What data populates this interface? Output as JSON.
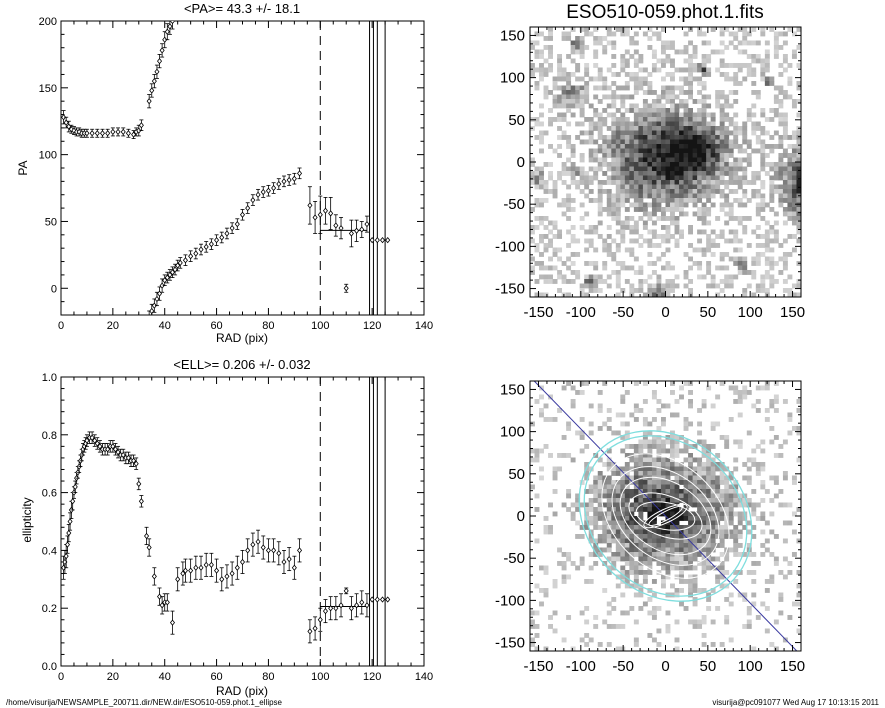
{
  "chart_data": [
    {
      "type": "scatter",
      "title": "<PA>=  43.3 +/-  18.1",
      "xlabel": "RAD (pix)",
      "ylabel": "PA",
      "xlim": [
        0,
        140
      ],
      "ylim": [
        -20,
        200
      ],
      "x_ticks": [
        "0",
        "20",
        "40",
        "60",
        "80",
        "100",
        "120",
        "140"
      ],
      "y_ticks": [
        "0",
        "50",
        "100",
        "150",
        "200"
      ],
      "dashed_x": 100,
      "solid_x": [
        119,
        120.5,
        122,
        125
      ],
      "mean_line": {
        "x": [
          100,
          118
        ],
        "y": 43.3
      },
      "points": {
        "x": [
          1,
          2,
          3,
          4,
          5,
          6,
          7,
          8,
          9,
          10,
          12,
          14,
          16,
          18,
          20,
          22,
          24,
          26,
          28,
          29,
          30,
          31,
          34,
          35,
          36,
          37,
          38,
          39,
          40,
          41,
          42,
          43,
          34,
          35,
          36,
          37,
          38,
          39,
          40,
          41,
          42,
          43,
          44,
          45,
          46,
          48,
          50,
          52,
          54,
          56,
          58,
          60,
          62,
          64,
          66,
          68,
          70,
          72,
          74,
          76,
          78,
          80,
          82,
          84,
          86,
          88,
          90,
          92,
          96,
          98,
          100,
          102,
          104,
          106,
          108,
          110,
          112,
          114,
          116,
          118,
          120,
          122,
          124,
          126
        ],
        "y": [
          128,
          124,
          121,
          119,
          118,
          117,
          117,
          116,
          116,
          116,
          116,
          116,
          116,
          116,
          117,
          117,
          117,
          116,
          115,
          117,
          118,
          122,
          140,
          148,
          155,
          162,
          170,
          178,
          186,
          192,
          196,
          200,
          -22,
          -17,
          -13,
          -8,
          -4,
          2,
          6,
          8,
          10,
          12,
          14,
          17,
          19,
          21,
          24,
          26,
          29,
          31,
          33,
          36,
          38,
          41,
          45,
          48,
          55,
          60,
          66,
          70,
          72,
          73,
          75,
          78,
          80,
          81,
          82,
          86,
          62,
          53,
          55,
          58,
          56,
          47,
          45,
          0,
          41,
          43,
          44,
          48,
          36,
          36,
          36,
          36
        ],
        "err": [
          5,
          4,
          4,
          3,
          3,
          3,
          3,
          3,
          3,
          3,
          3,
          3,
          3,
          3,
          3,
          3,
          3,
          3,
          3,
          3,
          4,
          4,
          5,
          5,
          5,
          5,
          5,
          5,
          6,
          6,
          6,
          6,
          5,
          5,
          5,
          5,
          5,
          5,
          4,
          4,
          4,
          4,
          4,
          4,
          4,
          4,
          4,
          4,
          4,
          4,
          4,
          4,
          4,
          4,
          4,
          4,
          4,
          4,
          4,
          4,
          4,
          4,
          4,
          4,
          4,
          4,
          4,
          4,
          14,
          12,
          14,
          10,
          12,
          8,
          8,
          3,
          10,
          8,
          6,
          6,
          0,
          0,
          0,
          0
        ]
      }
    },
    {
      "type": "scatter",
      "title": "<ELL>= 0.206 +/-  0.032",
      "xlabel": "RAD (pix)",
      "ylabel": "ellipticity",
      "xlim": [
        0,
        140
      ],
      "ylim": [
        0,
        1
      ],
      "x_ticks": [
        "0",
        "20",
        "40",
        "60",
        "80",
        "100",
        "120",
        "140"
      ],
      "y_ticks": [
        "0.0",
        "0.2",
        "0.4",
        "0.6",
        "0.8",
        "1.0"
      ],
      "dashed_x": 100,
      "solid_x": [
        119,
        120.5,
        122,
        125
      ],
      "mean_line": {
        "x": [
          100,
          118
        ],
        "y": 0.206
      },
      "points": {
        "x": [
          1,
          1.5,
          2,
          2.5,
          3,
          3.5,
          4,
          4.5,
          5,
          5.5,
          6,
          6.5,
          7,
          7.5,
          8,
          8.5,
          9,
          9.5,
          10,
          11,
          12,
          13,
          14,
          15,
          16,
          17,
          18,
          19,
          20,
          21,
          22,
          23,
          24,
          25,
          26,
          27,
          28,
          29,
          30,
          31,
          33,
          34,
          36,
          38,
          39,
          40,
          41,
          43,
          45,
          47,
          48,
          50,
          52,
          54,
          56,
          58,
          60,
          62,
          64,
          66,
          68,
          70,
          72,
          74,
          76,
          78,
          80,
          82,
          84,
          86,
          88,
          90,
          92,
          96,
          98,
          100,
          102,
          104,
          106,
          108,
          110,
          112,
          114,
          116,
          118,
          120,
          122,
          124,
          126
        ],
        "y": [
          0.34,
          0.36,
          0.38,
          0.42,
          0.46,
          0.5,
          0.54,
          0.57,
          0.6,
          0.62,
          0.65,
          0.67,
          0.69,
          0.71,
          0.73,
          0.75,
          0.76,
          0.77,
          0.78,
          0.79,
          0.79,
          0.78,
          0.77,
          0.76,
          0.75,
          0.75,
          0.75,
          0.76,
          0.76,
          0.75,
          0.74,
          0.73,
          0.73,
          0.72,
          0.72,
          0.71,
          0.71,
          0.7,
          0.63,
          0.57,
          0.45,
          0.41,
          0.31,
          0.24,
          0.21,
          0.22,
          0.22,
          0.15,
          0.3,
          0.32,
          0.33,
          0.33,
          0.34,
          0.34,
          0.35,
          0.35,
          0.33,
          0.3,
          0.31,
          0.32,
          0.34,
          0.36,
          0.4,
          0.42,
          0.43,
          0.41,
          0.4,
          0.4,
          0.39,
          0.36,
          0.37,
          0.34,
          0.4,
          0.12,
          0.13,
          0.16,
          0.19,
          0.2,
          0.2,
          0.21,
          0.26,
          0.2,
          0.21,
          0.22,
          0.21,
          0.23,
          0.23,
          0.23,
          0.23
        ],
        "err": [
          0.04,
          0.04,
          0.04,
          0.03,
          0.03,
          0.03,
          0.03,
          0.03,
          0.02,
          0.02,
          0.02,
          0.02,
          0.02,
          0.02,
          0.02,
          0.02,
          0.02,
          0.02,
          0.02,
          0.02,
          0.02,
          0.02,
          0.02,
          0.02,
          0.02,
          0.02,
          0.02,
          0.02,
          0.02,
          0.02,
          0.02,
          0.02,
          0.02,
          0.02,
          0.02,
          0.02,
          0.02,
          0.02,
          0.02,
          0.02,
          0.03,
          0.03,
          0.03,
          0.03,
          0.03,
          0.03,
          0.03,
          0.04,
          0.04,
          0.04,
          0.04,
          0.04,
          0.04,
          0.04,
          0.04,
          0.04,
          0.04,
          0.04,
          0.04,
          0.04,
          0.04,
          0.04,
          0.04,
          0.04,
          0.04,
          0.04,
          0.04,
          0.04,
          0.04,
          0.04,
          0.04,
          0.04,
          0.04,
          0.04,
          0.04,
          0.04,
          0.04,
          0.04,
          0.04,
          0.04,
          0.01,
          0.04,
          0.04,
          0.04,
          0.04,
          0,
          0,
          0,
          0
        ]
      }
    },
    {
      "type": "heatmap",
      "title": "ESO510-059.phot.1.fits",
      "xlim": [
        -160,
        160
      ],
      "ylim": [
        -160,
        160
      ],
      "x_ticks": [
        "-150",
        "-100",
        "-50",
        "0",
        "50",
        "100",
        "150"
      ],
      "y_ticks": [
        "-150",
        "-100",
        "-50",
        "0",
        "50",
        "100",
        "150"
      ],
      "colormap": "grayscale inverted (dark = bright)",
      "sources": [
        {
          "x": -5,
          "y": 5,
          "peak": 0.85,
          "sx": 45,
          "sy": 38
        },
        {
          "x": 35,
          "y": 15,
          "peak": 0.55,
          "sx": 25,
          "sy": 20
        },
        {
          "x": 175,
          "y": -25,
          "peak": 1.0,
          "sx": 25,
          "sy": 28
        },
        {
          "x": -110,
          "y": 80,
          "peak": 0.45,
          "sx": 12,
          "sy": 12
        },
        {
          "x": -105,
          "y": 140,
          "peak": 0.7,
          "sx": 5,
          "sy": 5
        },
        {
          "x": 45,
          "y": 110,
          "peak": 0.7,
          "sx": 5,
          "sy": 5
        },
        {
          "x": 120,
          "y": 95,
          "peak": 0.6,
          "sx": 5,
          "sy": 5
        },
        {
          "x": -110,
          "y": -10,
          "peak": 0.5,
          "sx": 5,
          "sy": 5
        },
        {
          "x": 90,
          "y": -125,
          "peak": 0.6,
          "sx": 5,
          "sy": 5
        },
        {
          "x": -90,
          "y": -140,
          "peak": 0.6,
          "sx": 5,
          "sy": 5
        },
        {
          "x": -150,
          "y": -20,
          "peak": 0.55,
          "sx": 6,
          "sy": 6
        },
        {
          "x": -10,
          "y": -155,
          "peak": 0.6,
          "sx": 8,
          "sy": 6
        }
      ]
    },
    {
      "type": "heatmap",
      "title": "",
      "xlim": [
        -160,
        160
      ],
      "ylim": [
        -160,
        160
      ],
      "x_ticks": [
        "-150",
        "-100",
        "-50",
        "0",
        "50",
        "100",
        "150"
      ],
      "y_ticks": [
        "-150",
        "-100",
        "-50",
        "0",
        "50",
        "100",
        "150"
      ],
      "colormap": "grayscale, masked residual with ellipse fits",
      "sources": [
        {
          "x": -5,
          "y": 5,
          "peak": 0.75,
          "sx": 55,
          "sy": 45
        },
        {
          "x": 0,
          "y": 0,
          "peak": 0.5,
          "sx": 18,
          "sy": 10
        }
      ],
      "line": {
        "x": [
          -155,
          155
        ],
        "y": [
          160,
          -160
        ],
        "color": "#3a3aa0"
      },
      "ellipses_cyan": [
        {
          "cx": 0,
          "cy": 0,
          "a": 110,
          "b": 92,
          "angle_deg": -43
        },
        {
          "cx": 0,
          "cy": 0,
          "a": 104,
          "b": 86,
          "angle_deg": -43
        }
      ],
      "ellipses_white": [
        {
          "cx": 0,
          "cy": 0,
          "a": 85,
          "b": 62,
          "angle_deg": -43
        },
        {
          "cx": 0,
          "cy": 0,
          "a": 70,
          "b": 50,
          "angle_deg": -38
        },
        {
          "cx": 0,
          "cy": 0,
          "a": 58,
          "b": 40,
          "angle_deg": -32
        },
        {
          "cx": 0,
          "cy": 0,
          "a": 45,
          "b": 24,
          "angle_deg": -20
        },
        {
          "cx": 0,
          "cy": 0,
          "a": 35,
          "b": 16,
          "angle_deg": -10
        },
        {
          "cx": 0,
          "cy": 0,
          "a": 28,
          "b": 8,
          "angle_deg": 25
        },
        {
          "cx": 0,
          "cy": 0,
          "a": 22,
          "b": 5,
          "angle_deg": 28
        }
      ]
    }
  ],
  "footer": {
    "path": "/home/visurija/NEWSAMPLE_200711.dir/NEW.dir/ESO510-059.phot.1_ellipse",
    "user_date": "visurija@pc091077  Wed Aug 17 10:13:15 2011"
  }
}
